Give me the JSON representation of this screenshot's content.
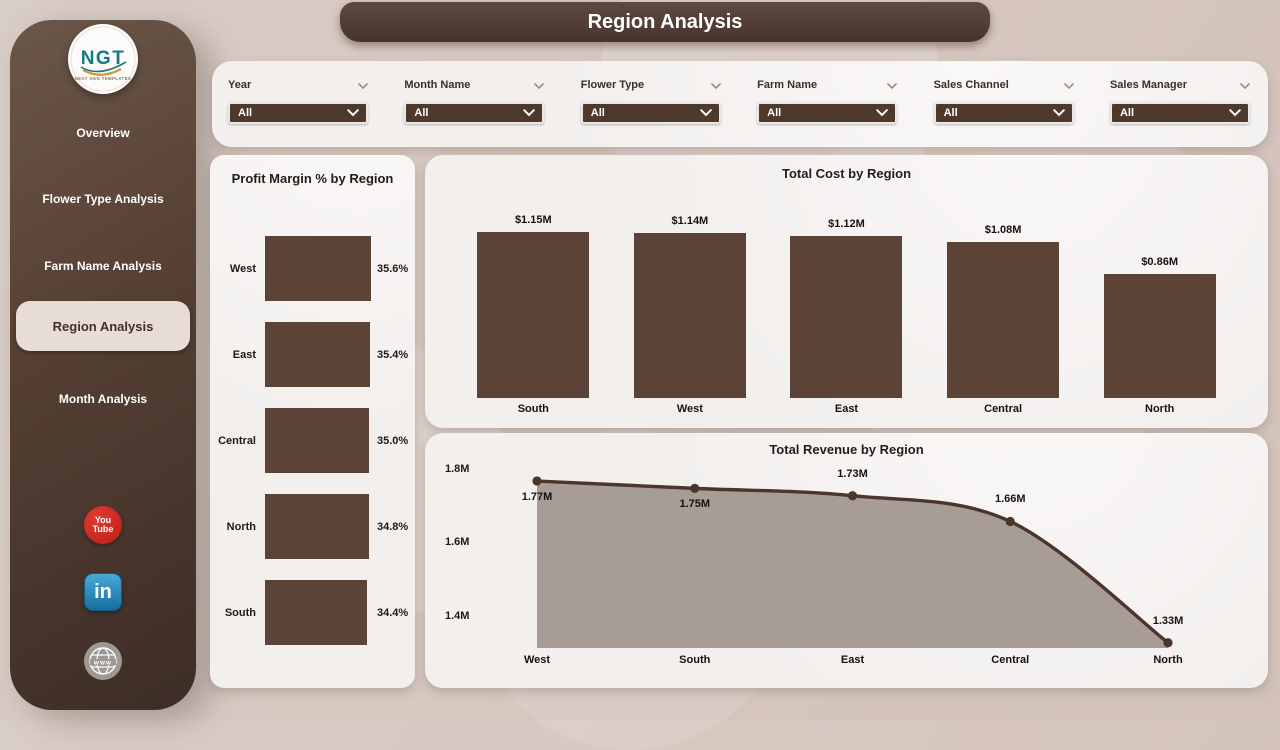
{
  "app": {
    "title": "Region Analysis"
  },
  "colors": {
    "accent_brown": "#5b4337",
    "sidebar_brown": "#4a372c",
    "active_nav_bg": "#e8dcd6",
    "panel_bg": "#f2efed",
    "page_bg": "#d7c8c0",
    "area_fill": "#a89c97",
    "line_stroke": "#4a362b",
    "youtube_red": "#c9241c",
    "linkedin_blue": "#2577b5"
  },
  "sidebar": {
    "logo": {
      "text": "NGT",
      "subtext": "NEXT GEN TEMPLATES"
    },
    "items": [
      {
        "label": "Overview",
        "active": false
      },
      {
        "label": "Flower Type Analysis",
        "active": false
      },
      {
        "label": "Farm Name Analysis",
        "active": false
      },
      {
        "label": "Region Analysis",
        "active": true
      },
      {
        "label": "Month Analysis",
        "active": false
      }
    ],
    "social": [
      {
        "name": "youtube",
        "lines": [
          "You",
          "Tube"
        ]
      },
      {
        "name": "linkedin",
        "text": "in"
      },
      {
        "name": "website",
        "text": "www"
      }
    ]
  },
  "filters": [
    {
      "label": "Year",
      "value": "All"
    },
    {
      "label": "Month Name",
      "value": "All"
    },
    {
      "label": "Flower Type",
      "value": "All"
    },
    {
      "label": "Farm Name",
      "value": "All"
    },
    {
      "label": "Sales Channel",
      "value": "All"
    },
    {
      "label": "Sales Manager",
      "value": "All"
    }
  ],
  "chart_data": [
    {
      "name": "profit_margin_by_region",
      "type": "bar",
      "orientation": "horizontal",
      "title": "Profit Margin % by Region",
      "categories": [
        "West",
        "East",
        "Central",
        "North",
        "South"
      ],
      "values": [
        35.6,
        35.4,
        35.0,
        34.8,
        34.4
      ],
      "value_labels": [
        "35.6%",
        "35.4%",
        "35.0%",
        "34.8%",
        "34.4%"
      ],
      "xlim": [
        0,
        35.6
      ]
    },
    {
      "name": "total_cost_by_region",
      "type": "bar",
      "orientation": "vertical",
      "title": "Total Cost by Region",
      "categories": [
        "South",
        "West",
        "East",
        "Central",
        "North"
      ],
      "values": [
        1.15,
        1.14,
        1.12,
        1.08,
        0.86
      ],
      "value_labels": [
        "$1.15M",
        "$1.14M",
        "$1.12M",
        "$1.08M",
        "$0.86M"
      ],
      "ylim": [
        0,
        1.15
      ]
    },
    {
      "name": "total_revenue_by_region",
      "type": "area",
      "title": "Total Revenue by Region",
      "categories": [
        "West",
        "South",
        "East",
        "Central",
        "North"
      ],
      "values": [
        1.77,
        1.75,
        1.73,
        1.66,
        1.33
      ],
      "value_labels": [
        "1.77M",
        "1.75M",
        "1.73M",
        "1.66M",
        "1.33M"
      ],
      "label_positions": [
        "below",
        "below",
        "above",
        "above",
        "above"
      ],
      "yticks": [
        "1.8M",
        "1.6M",
        "1.4M"
      ],
      "ytick_values": [
        1.8,
        1.6,
        1.4
      ],
      "ylim": [
        1.31,
        1.8
      ],
      "grid": false,
      "legend": "none"
    }
  ]
}
